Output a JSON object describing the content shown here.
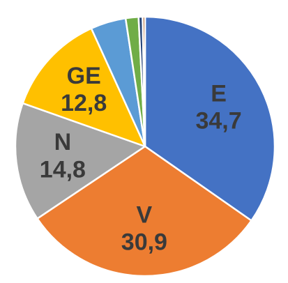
{
  "chart_data": {
    "type": "pie",
    "start_angle_deg": 0,
    "direction": "clockwise",
    "legend": "none",
    "slices": [
      {
        "label": "E",
        "value": 34.7,
        "value_label": "34,7",
        "color": "#4472C4",
        "show_label": true
      },
      {
        "label": "V",
        "value": 30.9,
        "value_label": "30,9",
        "color": "#ED7D31",
        "show_label": true
      },
      {
        "label": "N",
        "value": 14.8,
        "value_label": "14,8",
        "color": "#A5A5A5",
        "show_label": true
      },
      {
        "label": "GE",
        "value": 12.8,
        "value_label": "12,8",
        "color": "#FFC000",
        "show_label": true
      },
      {
        "label": "",
        "value": 4.4,
        "value_label": "",
        "color": "#5B9BD5",
        "show_label": false
      },
      {
        "label": "",
        "value": 1.6,
        "value_label": "",
        "color": "#70AD47",
        "show_label": false
      },
      {
        "label": "",
        "value": 0.5,
        "value_label": "",
        "color": "#264478",
        "show_label": false
      },
      {
        "label": "",
        "value": 0.3,
        "value_label": "",
        "color": "#9E480E",
        "show_label": false
      }
    ]
  }
}
